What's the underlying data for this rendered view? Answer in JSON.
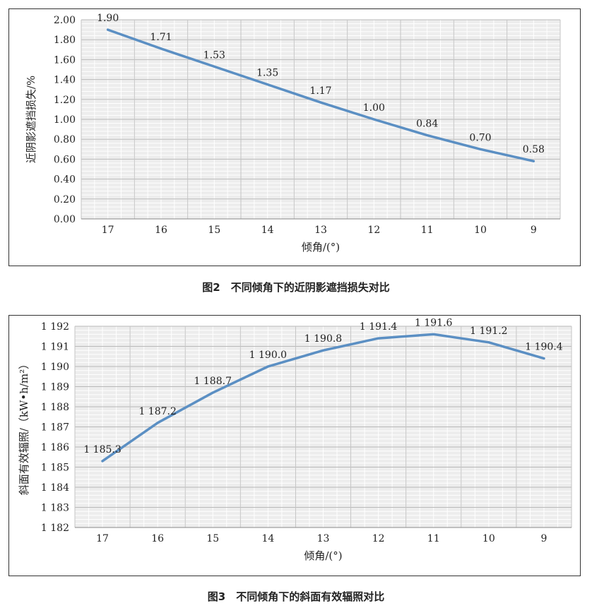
{
  "figures": [
    {
      "caption": "图2　不同倾角下的近阴影遮挡损失对比"
    },
    {
      "caption": "图3　不同倾角下的斜面有效辐照对比"
    }
  ],
  "chart_data": [
    {
      "type": "line",
      "title": "",
      "xlabel": "倾角/(°)",
      "ylabel": "近阴影遮挡损失/%",
      "categories": [
        "17",
        "16",
        "15",
        "14",
        "13",
        "12",
        "11",
        "10",
        "9"
      ],
      "series": [
        {
          "values": [
            1.9,
            1.71,
            1.53,
            1.35,
            1.17,
            1.0,
            0.84,
            0.7,
            0.58
          ]
        }
      ],
      "data_labels": [
        "1.90",
        "1.71",
        "1.53",
        "1.35",
        "1.17",
        "1.00",
        "0.84",
        "0.70",
        "0.58"
      ],
      "ylim": [
        0,
        2.0
      ],
      "yticks": [
        "0.00",
        "0.20",
        "0.40",
        "0.60",
        "0.80",
        "1.00",
        "1.20",
        "1.40",
        "1.60",
        "1.80",
        "2.00"
      ],
      "grid": true,
      "color": "#5b8fc3"
    },
    {
      "type": "line",
      "title": "",
      "xlabel": "倾角/(°)",
      "ylabel": "斜面有效辐照/（kW•h/m²）",
      "categories": [
        "17",
        "16",
        "15",
        "14",
        "13",
        "12",
        "11",
        "10",
        "9"
      ],
      "series": [
        {
          "values": [
            1185.3,
            1187.2,
            1188.7,
            1190.0,
            1190.8,
            1191.4,
            1191.6,
            1191.2,
            1190.4
          ]
        }
      ],
      "data_labels": [
        "1 185.3",
        "1 187.2",
        "1 188.7",
        "1 190.0",
        "1 190.8",
        "1 191.4",
        "1 191.6",
        "1 191.2",
        "1 190.4"
      ],
      "ylim": [
        1182,
        1192
      ],
      "yticks": [
        "1 182",
        "1 183",
        "1 184",
        "1 185",
        "1 186",
        "1 187",
        "1 188",
        "1 189",
        "1 190",
        "1 191",
        "1 192"
      ],
      "grid": true,
      "color": "#5b8fc3"
    }
  ]
}
